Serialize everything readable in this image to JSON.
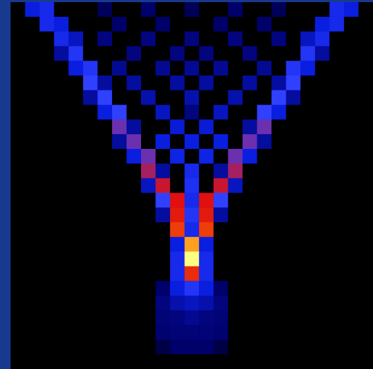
{
  "chart_data": {
    "type": "heatmap",
    "zlim": [
      0,
      1
    ],
    "tick_labels": false,
    "grid": false,
    "cells": [
      [
        0,
        0.3,
        0.35,
        0,
        0,
        0,
        0.1,
        0,
        0,
        0.12,
        0,
        0,
        0.1,
        0,
        0,
        0.12,
        0,
        0,
        0.1,
        0,
        0,
        0,
        0.35,
        0.3,
        0
      ],
      [
        0,
        0,
        0.35,
        0.3,
        0,
        0,
        0,
        0.12,
        0,
        0,
        0.12,
        0,
        0,
        0,
        0.12,
        0,
        0,
        0.12,
        0,
        0,
        0,
        0.3,
        0.35,
        0,
        0
      ],
      [
        0,
        0,
        0,
        0.35,
        0.25,
        0,
        0.15,
        0,
        0,
        0.15,
        0,
        0,
        0.15,
        0,
        0,
        0.15,
        0,
        0,
        0.15,
        0,
        0.25,
        0.35,
        0,
        0,
        0
      ],
      [
        0,
        0,
        0,
        0.2,
        0.4,
        0,
        0,
        0,
        0.15,
        0,
        0,
        0.15,
        0,
        0.15,
        0,
        0,
        0.15,
        0,
        0,
        0,
        0.4,
        0.2,
        0,
        0,
        0
      ],
      [
        0,
        0,
        0,
        0,
        0.3,
        0.4,
        0,
        0.18,
        0,
        0,
        0.18,
        0,
        0.18,
        0,
        0.18,
        0,
        0,
        0.18,
        0,
        0.4,
        0.3,
        0,
        0,
        0,
        0
      ],
      [
        0,
        0,
        0,
        0,
        0,
        0.45,
        0.2,
        0,
        0.2,
        0,
        0,
        0.2,
        0,
        0.2,
        0,
        0,
        0.2,
        0,
        0.2,
        0.45,
        0,
        0,
        0,
        0,
        0
      ],
      [
        0,
        0,
        0,
        0,
        0,
        0.2,
        0.45,
        0,
        0,
        0.22,
        0,
        0,
        0.22,
        0,
        0,
        0.22,
        0,
        0,
        0.45,
        0.2,
        0,
        0,
        0,
        0,
        0
      ],
      [
        0,
        0,
        0,
        0,
        0,
        0,
        0.3,
        0.45,
        0,
        0,
        0.25,
        0,
        0.15,
        0,
        0.25,
        0,
        0,
        0.45,
        0.3,
        0,
        0,
        0,
        0,
        0,
        0
      ],
      [
        0,
        0,
        0,
        0,
        0,
        0,
        0,
        0.5,
        0.2,
        0,
        0,
        0.28,
        0,
        0.28,
        0,
        0,
        0.2,
        0.5,
        0,
        0,
        0,
        0,
        0,
        0,
        0
      ],
      [
        0,
        0,
        0,
        0,
        0,
        0,
        0,
        0.2,
        0.5,
        0,
        0.3,
        0,
        0.3,
        0,
        0.3,
        0,
        0.5,
        0.2,
        0,
        0,
        0,
        0,
        0,
        0,
        0
      ],
      [
        0,
        0,
        0,
        0,
        0,
        0,
        0,
        0,
        0.3,
        0.5,
        0,
        0.32,
        0,
        0.32,
        0,
        0.5,
        0.3,
        0,
        0,
        0,
        0,
        0,
        0,
        0,
        0
      ],
      [
        0,
        0,
        0,
        0,
        0,
        0,
        0,
        0,
        0,
        0.55,
        0.2,
        0,
        0.35,
        0,
        0.2,
        0.55,
        0,
        0,
        0,
        0,
        0,
        0,
        0,
        0,
        0
      ],
      [
        0,
        0,
        0,
        0,
        0,
        0,
        0,
        0,
        0,
        0.25,
        0.58,
        0,
        0.38,
        0,
        0.58,
        0.25,
        0,
        0,
        0,
        0,
        0,
        0,
        0,
        0,
        0
      ],
      [
        0,
        0,
        0,
        0,
        0,
        0,
        0,
        0,
        0,
        0,
        0.45,
        0.6,
        0.35,
        0.6,
        0.45,
        0,
        0,
        0,
        0,
        0,
        0,
        0,
        0,
        0,
        0
      ],
      [
        0,
        0,
        0,
        0,
        0,
        0,
        0,
        0,
        0,
        0,
        0.2,
        0.62,
        0.4,
        0.62,
        0.2,
        0,
        0,
        0,
        0,
        0,
        0,
        0,
        0,
        0,
        0
      ],
      [
        0,
        0,
        0,
        0,
        0,
        0,
        0,
        0,
        0,
        0,
        0,
        0.68,
        0.35,
        0.68,
        0,
        0,
        0,
        0,
        0,
        0,
        0,
        0,
        0,
        0,
        0
      ],
      [
        0,
        0,
        0,
        0,
        0,
        0,
        0,
        0,
        0,
        0,
        0,
        0.3,
        0.85,
        0.3,
        0,
        0,
        0,
        0,
        0,
        0,
        0,
        0,
        0,
        0,
        0
      ],
      [
        0,
        0,
        0,
        0,
        0,
        0,
        0,
        0,
        0,
        0,
        0,
        0.35,
        1.0,
        0.35,
        0,
        0,
        0,
        0,
        0,
        0,
        0,
        0,
        0,
        0,
        0
      ],
      [
        0,
        0,
        0,
        0,
        0,
        0,
        0,
        0,
        0,
        0,
        0,
        0.35,
        0.65,
        0.35,
        0,
        0,
        0,
        0,
        0,
        0,
        0,
        0,
        0,
        0,
        0
      ],
      [
        0,
        0,
        0,
        0,
        0,
        0,
        0,
        0,
        0,
        0,
        0.12,
        0.3,
        0.4,
        0.3,
        0.12,
        0,
        0,
        0,
        0,
        0,
        0,
        0,
        0,
        0,
        0
      ],
      [
        0,
        0,
        0,
        0,
        0,
        0,
        0,
        0,
        0,
        0,
        0.15,
        0.22,
        0.25,
        0.22,
        0.15,
        0,
        0,
        0,
        0,
        0,
        0,
        0,
        0,
        0,
        0
      ],
      [
        0,
        0,
        0,
        0,
        0,
        0,
        0,
        0,
        0,
        0,
        0.14,
        0.15,
        0.18,
        0.15,
        0.14,
        0,
        0,
        0,
        0,
        0,
        0,
        0,
        0,
        0,
        0
      ],
      [
        0,
        0,
        0,
        0,
        0,
        0,
        0,
        0,
        0,
        0,
        0.13,
        0.14,
        0.14,
        0.14,
        0.13,
        0,
        0,
        0,
        0,
        0,
        0,
        0,
        0,
        0,
        0
      ],
      [
        0,
        0,
        0,
        0,
        0,
        0,
        0,
        0,
        0,
        0,
        0.08,
        0.12,
        0.12,
        0.12,
        0.08,
        0,
        0,
        0,
        0,
        0,
        0,
        0,
        0,
        0,
        0
      ],
      [
        0,
        0,
        0,
        0,
        0,
        0,
        0,
        0,
        0,
        0,
        0,
        0,
        0,
        0,
        0,
        0,
        0,
        0,
        0,
        0,
        0,
        0,
        0,
        0,
        0
      ]
    ]
  }
}
